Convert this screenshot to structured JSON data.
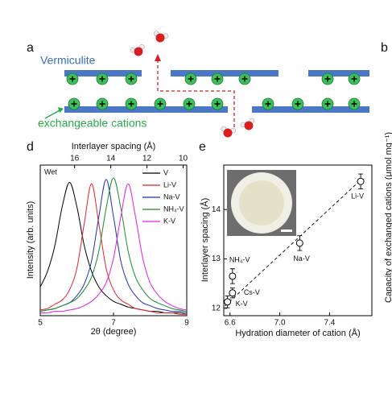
{
  "panel_a": {
    "label": "a",
    "layer_label": "Vermiculite",
    "cation_label": "exchangeable cations"
  },
  "panel_b": {
    "label": "b",
    "y_label": "Capacity of exchanged cations (μmol mg⁻¹)"
  },
  "chart_data": [
    {
      "type": "line",
      "panel_label": "d",
      "annotation": "Wet",
      "x_label": "2θ (degree)",
      "y_label": "Intensity (arb. units)",
      "x2_label": "Interlayer spacing (Å)",
      "x": [
        5.0,
        5.2,
        5.4,
        5.6,
        5.8,
        6.0,
        6.2,
        6.4,
        6.6,
        6.8,
        7.0,
        7.2,
        7.4,
        7.6,
        7.8,
        8.0,
        8.2,
        8.4,
        8.6,
        8.8,
        9.0
      ],
      "xlim": [
        5,
        9
      ],
      "xticks": [
        5,
        7,
        9
      ],
      "x2lim": [
        17.9,
        9.8
      ],
      "x2ticks": [
        16,
        14,
        12,
        10
      ],
      "ylim": [
        0,
        1.05
      ],
      "series": [
        {
          "name": "V",
          "color": "#000000",
          "values": [
            0.2,
            0.31,
            0.49,
            0.76,
            0.93,
            0.76,
            0.49,
            0.31,
            0.2,
            0.14,
            0.1,
            0.08,
            0.06,
            0.05,
            0.04,
            0.03,
            0.03,
            0.02,
            0.02,
            0.02,
            0.01
          ]
        },
        {
          "name": "Li-V",
          "color": "#e8202a",
          "values": [
            0.04,
            0.05,
            0.08,
            0.11,
            0.18,
            0.33,
            0.64,
            0.92,
            0.64,
            0.33,
            0.18,
            0.11,
            0.08,
            0.05,
            0.04,
            0.03,
            0.02,
            0.02,
            0.02,
            0.01,
            0.01
          ]
        },
        {
          "name": "Na-V",
          "color": "#1f2fb0",
          "values": [
            0.03,
            0.04,
            0.05,
            0.07,
            0.09,
            0.14,
            0.22,
            0.38,
            0.69,
            0.95,
            0.69,
            0.38,
            0.22,
            0.14,
            0.09,
            0.07,
            0.05,
            0.04,
            0.03,
            0.03,
            0.02
          ]
        },
        {
          "name": "NH₄-V",
          "color": "#1a8a2a",
          "values": [
            0.03,
            0.04,
            0.05,
            0.07,
            0.09,
            0.12,
            0.18,
            0.27,
            0.45,
            0.75,
            0.96,
            0.75,
            0.45,
            0.27,
            0.18,
            0.12,
            0.09,
            0.07,
            0.05,
            0.04,
            0.03
          ]
        },
        {
          "name": "K-V",
          "color": "#e020e0",
          "values": [
            0.02,
            0.02,
            0.03,
            0.03,
            0.04,
            0.05,
            0.07,
            0.1,
            0.15,
            0.23,
            0.4,
            0.69,
            0.92,
            0.69,
            0.4,
            0.23,
            0.15,
            0.1,
            0.07,
            0.05,
            0.04
          ]
        }
      ]
    },
    {
      "type": "scatter",
      "panel_label": "e",
      "x_label": "Hydration diameter of cation (Å)",
      "y_label": "Interlayer spacing (Å)",
      "labels": [
        "K-V",
        "Cs-V",
        "NH₄-V",
        "Na-V",
        "Li-V"
      ],
      "x": [
        6.58,
        6.62,
        6.62,
        7.16,
        7.65
      ],
      "values": [
        12.13,
        12.31,
        12.65,
        13.32,
        14.57
      ],
      "errors": [
        0.12,
        0.1,
        0.15,
        0.15,
        0.15
      ],
      "fit": {
        "x": [
          6.56,
          7.66
        ],
        "values": [
          12.05,
          14.62
        ]
      },
      "xlim": [
        6.55,
        7.74
      ],
      "xticks": [
        6.6,
        {
          "value": 7,
          "label": "7.0"
        },
        7.4
      ],
      "ylim": [
        11.85,
        14.9
      ],
      "yticks": [
        12,
        13,
        14
      ]
    }
  ]
}
